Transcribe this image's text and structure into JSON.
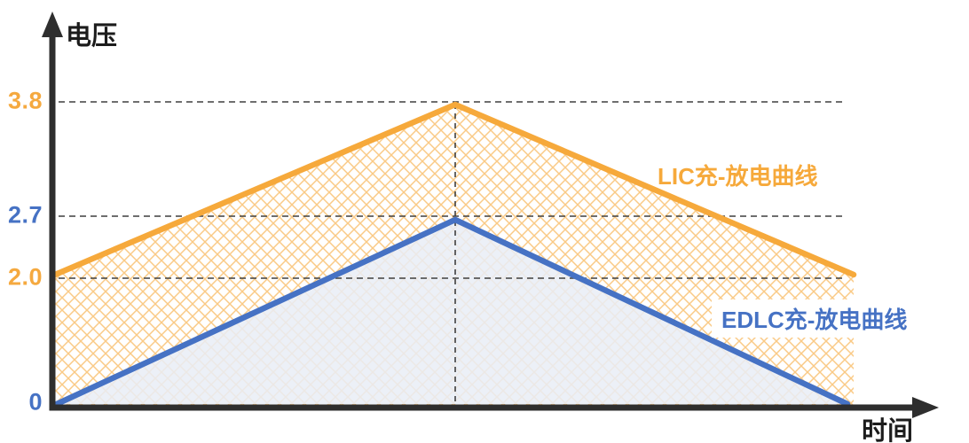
{
  "colors": {
    "lic": "#F6A93B",
    "edlc": "#4672C4",
    "edlc_fill": "#E9EDF6",
    "axis": "#2E2E2E",
    "grid": "#3F3F3F",
    "background": "#FFFFFF"
  },
  "axes": {
    "y_label": "电压",
    "x_label": "时间"
  },
  "annotations": {
    "lic_label": "LIC充-放电曲线",
    "edlc_label": "EDLC充-放电曲线"
  },
  "chart_data": {
    "type": "line",
    "title": "",
    "xlabel": "时间",
    "ylabel": "电压",
    "x_phases": [
      "charge-start",
      "charge-peak",
      "discharge-end"
    ],
    "series": [
      {
        "name": "LIC充-放电曲线",
        "color": "#F6A93B",
        "values": [
          2.0,
          3.8,
          2.0
        ],
        "fill": "orange-crosshatch"
      },
      {
        "name": "EDLC充-放电曲线",
        "color": "#4672C4",
        "values": [
          0,
          2.7,
          0
        ],
        "fill": "solid-lavender"
      }
    ],
    "yticks": [
      {
        "value": 3.8,
        "label": "3.8",
        "color": "#F5A93F"
      },
      {
        "value": 2.7,
        "label": "2.7",
        "color": "#4672C4"
      },
      {
        "value": 2.0,
        "label": "2.0",
        "color": "#F5A93F"
      },
      {
        "value": 0,
        "label": "0",
        "color": "#4672C4"
      }
    ],
    "gridlines": {
      "horizontal": [
        3.8,
        2.7,
        2.0
      ],
      "vertical_at_peak": true,
      "style": "dashed"
    },
    "ylim": [
      0,
      4.2
    ],
    "legend_position": "inline-annotations"
  }
}
